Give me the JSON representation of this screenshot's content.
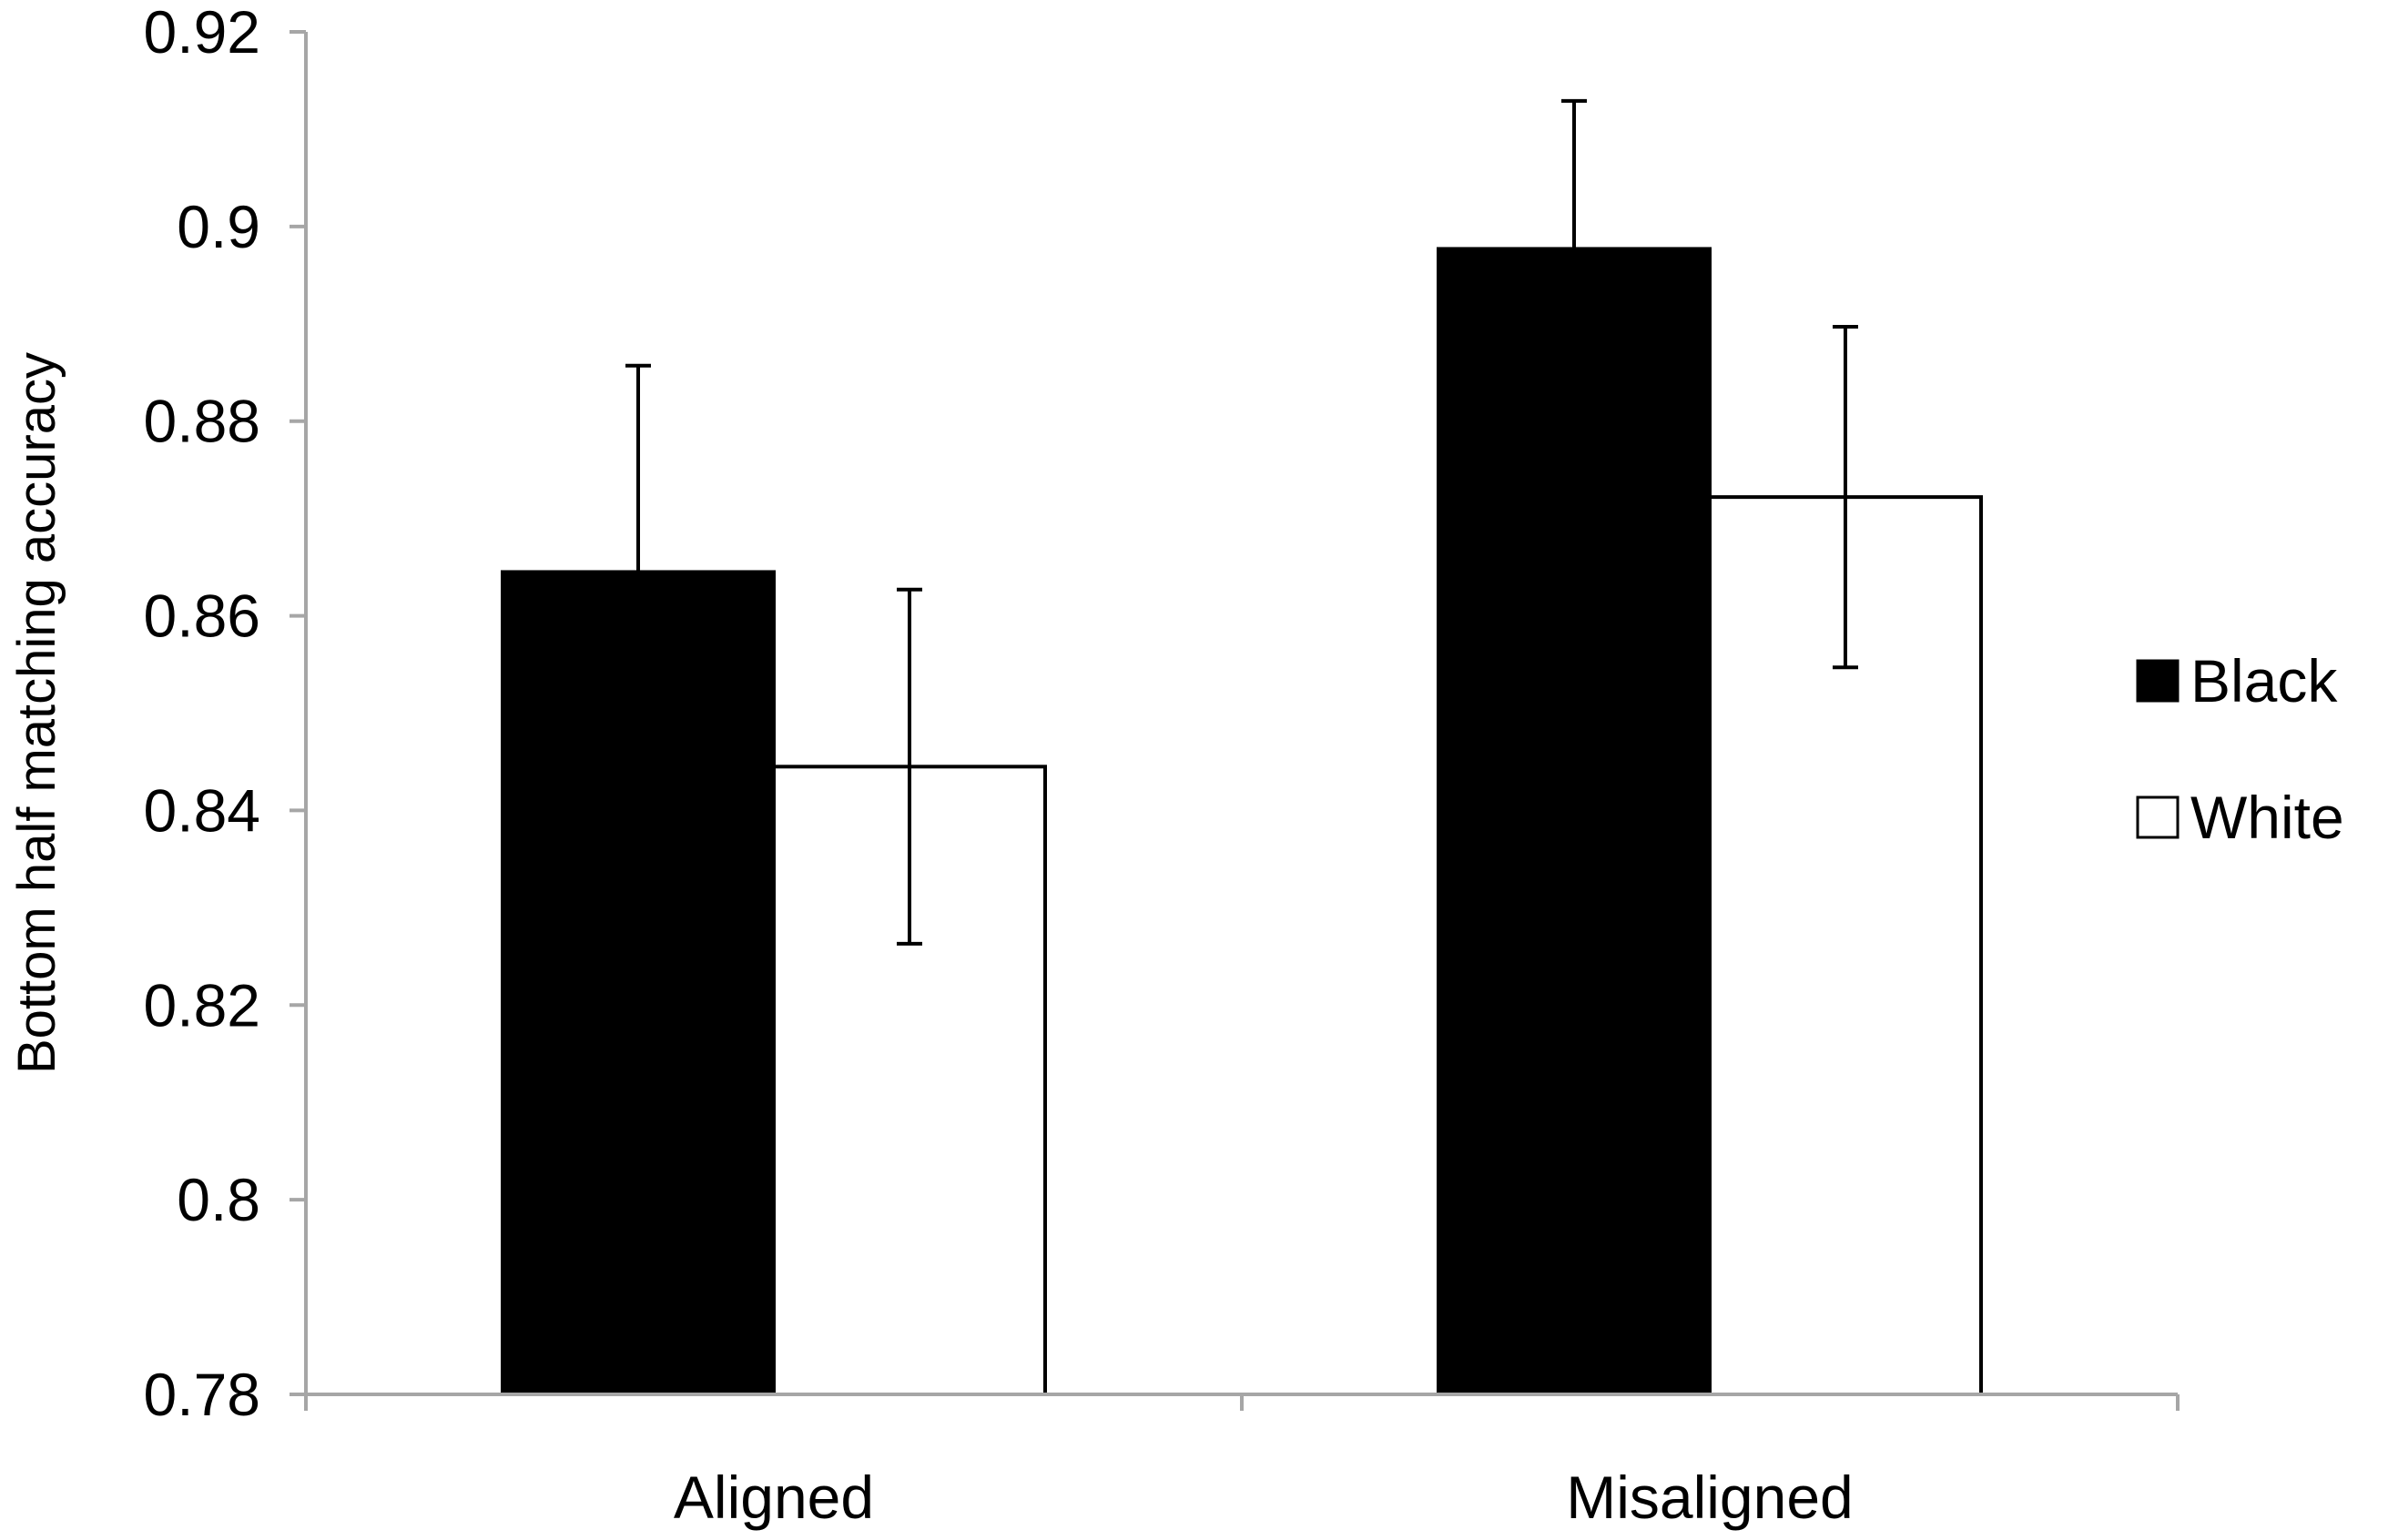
{
  "chart_data": {
    "type": "bar",
    "title": "",
    "xlabel": "",
    "ylabel": "Bottom half matching accuracy",
    "categories": [
      "Aligned",
      "Misaligned"
    ],
    "series": [
      {
        "name": "Black",
        "values": [
          0.8645,
          0.8977
        ],
        "errors": [
          0.0212,
          0.0152
        ],
        "fill": "#000000"
      },
      {
        "name": "White",
        "values": [
          0.8445,
          0.8722
        ],
        "errors": [
          0.0182,
          0.0175
        ],
        "fill": "#ffffff"
      }
    ],
    "ylim": [
      0.78,
      0.92
    ],
    "yticks": [
      0.78,
      0.8,
      0.82,
      0.84,
      0.86,
      0.88,
      0.9,
      0.92
    ],
    "ytick_labels": [
      "0.78",
      "0.8",
      "0.82",
      "0.84",
      "0.86",
      "0.88",
      "0.9",
      "0.92"
    ],
    "grid": false,
    "legend": "right",
    "axis_color": "#a6a6a6",
    "bar_edge_color": "#000000"
  }
}
